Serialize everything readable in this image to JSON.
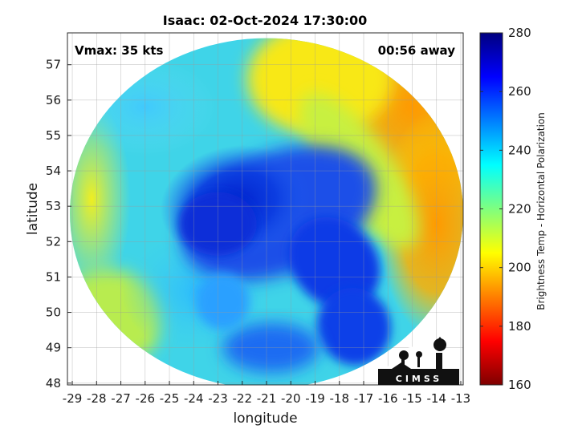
{
  "title": "Isaac: 02-Oct-2024 17:30:00",
  "annotations": {
    "vmax": "Vmax: 35 kts",
    "time_away": "00:56 away"
  },
  "axes": {
    "xlabel": "longitude",
    "ylabel": "latitude",
    "xlim": [
      -29.2,
      -12.9
    ],
    "ylim": [
      47.95,
      57.9
    ],
    "xticks": [
      "-29",
      "-28",
      "-27",
      "-26",
      "-25",
      "-24",
      "-23",
      "-22",
      "-21",
      "-20",
      "-19",
      "-18",
      "-17",
      "-16",
      "-15",
      "-14",
      "-13"
    ],
    "yticks": [
      "48",
      "49",
      "50",
      "51",
      "52",
      "53",
      "54",
      "55",
      "56",
      "57"
    ],
    "grid": true
  },
  "colorbar": {
    "label": "Brightness Temp - Horizontal Polarization",
    "range": [
      160,
      280
    ],
    "ticks": [
      "280",
      "260",
      "240",
      "220",
      "200",
      "180",
      "160"
    ],
    "colormap": "jet",
    "colors": [
      "#7f0000",
      "#ff0000",
      "#ff7f00",
      "#ffff00",
      "#7fff7f",
      "#00ffff",
      "#007fff",
      "#0000ff",
      "#00007f"
    ]
  },
  "chart_data": {
    "type": "heatmap",
    "title": "Isaac: 02-Oct-2024 17:30:00",
    "xlabel": "longitude",
    "ylabel": "latitude",
    "xlim": [
      -29.2,
      -12.9
    ],
    "ylim": [
      47.95,
      57.9
    ],
    "value_range": [
      160,
      280
    ],
    "swath": {
      "center": [
        -21.0,
        52.8
      ],
      "radius_lon": 8.1,
      "radius_lat": 4.95
    },
    "storm_center": [
      -22.3,
      53.0
    ],
    "features": [
      {
        "region": "core",
        "lon": -22.3,
        "lat": 53.0,
        "value": 268
      },
      {
        "region": "southern-spiral-band",
        "lon": -18.5,
        "lat": 49.5,
        "value": 262
      },
      {
        "region": "southwest-inner",
        "lon": -23.5,
        "lat": 51.0,
        "value": 242
      },
      {
        "region": "west",
        "lon": -28.0,
        "lat": 53.0,
        "value": 212
      },
      {
        "region": "northwest",
        "lon": -26.0,
        "lat": 55.8,
        "value": 228
      },
      {
        "region": "northeast",
        "lon": -15.0,
        "lat": 56.0,
        "value": 198
      },
      {
        "region": "east",
        "lon": -14.0,
        "lat": 52.0,
        "value": 192
      },
      {
        "region": "southwest",
        "lon": -26.0,
        "lat": 49.5,
        "value": 222
      }
    ]
  },
  "logo": {
    "text": "CIMSS"
  }
}
